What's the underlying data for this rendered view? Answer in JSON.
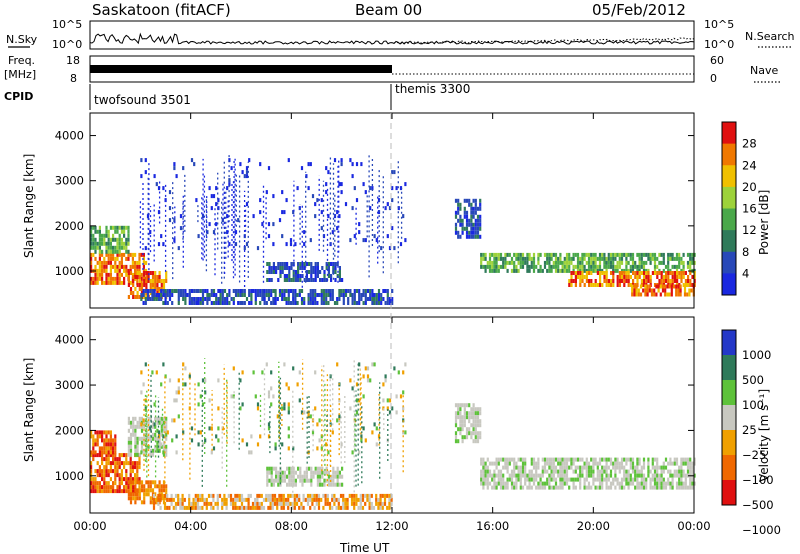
{
  "header": {
    "radar": "Saskatoon (fitACF)",
    "beam": "Beam 00",
    "date": "05/Feb/2012"
  },
  "top_panels": {
    "nsky_label": "N.Sky",
    "nsky_ticks": [
      "10^5",
      "10^0"
    ],
    "nsearch_label": "N.Search",
    "nsearch_ticks": [
      "10^5",
      "10^0"
    ],
    "freq_label": "Freq.",
    "freq_unit": "[MHz]",
    "freq_ticks": [
      "18",
      "8"
    ],
    "nave_label": "Nave",
    "nave_ticks": [
      "60",
      "0"
    ],
    "cpid_label": "CPID",
    "cpid_segments": [
      {
        "name": "twofsound 3501",
        "start_hour": 0,
        "end_hour": 12
      },
      {
        "name": "themis 3300",
        "start_hour": 12,
        "end_hour": 24
      }
    ]
  },
  "x_axis": {
    "label": "Time UT",
    "ticks": [
      "00:00",
      "04:00",
      "08:00",
      "12:00",
      "16:00",
      "20:00",
      "00:00"
    ]
  },
  "colors": {
    "power": [
      "#1a28e0",
      "#2848b8",
      "#2f7a5a",
      "#4aa84a",
      "#9dd23a",
      "#f0c000",
      "#f07800",
      "#e01010"
    ],
    "velocity": [
      "#2438c8",
      "#2f7a5a",
      "#5ec23a",
      "#c8c8c0",
      "#f0a000",
      "#f06800",
      "#e01010"
    ]
  },
  "chart_data": [
    {
      "type": "heatmap",
      "title": "",
      "xlabel": "Time UT",
      "ylabel": "Slant Range [km]",
      "xlim": [
        0,
        24
      ],
      "ylim": [
        180,
        4500
      ],
      "y_ticks": [
        "1000",
        "2000",
        "3000",
        "4000"
      ],
      "colorbar_label": "Power [dB]",
      "colorbar_ticks": [
        "4",
        "8",
        "12",
        "16",
        "20",
        "24",
        "28"
      ],
      "regions": [
        {
          "t": [
            0.0,
            2.2
          ],
          "r": [
            700,
            1400
          ],
          "level": "high"
        },
        {
          "t": [
            0.0,
            1.5
          ],
          "r": [
            1400,
            2000
          ],
          "level": "mid"
        },
        {
          "t": [
            1.5,
            3.0
          ],
          "r": [
            450,
            1000
          ],
          "level": "high"
        },
        {
          "t": [
            2.0,
            12.0
          ],
          "r": [
            300,
            600
          ],
          "level": "low"
        },
        {
          "t": [
            7.0,
            10.0
          ],
          "r": [
            800,
            1200
          ],
          "level": "low"
        },
        {
          "t": [
            2.0,
            12.5
          ],
          "r": [
            1500,
            3500
          ],
          "level": "sparse"
        },
        {
          "t": [
            14.5,
            15.5
          ],
          "r": [
            1800,
            2600
          ],
          "level": "low"
        },
        {
          "t": [
            15.5,
            24.0
          ],
          "r": [
            1000,
            1400
          ],
          "level": "mid"
        },
        {
          "t": [
            19.0,
            24.0
          ],
          "r": [
            700,
            1000
          ],
          "level": "high"
        },
        {
          "t": [
            21.5,
            24.0
          ],
          "r": [
            450,
            700
          ],
          "level": "high"
        }
      ]
    },
    {
      "type": "heatmap",
      "title": "",
      "xlabel": "Time UT",
      "ylabel": "Slant Range [km]",
      "xlim": [
        0,
        24
      ],
      "ylim": [
        180,
        4500
      ],
      "y_ticks": [
        "1000",
        "2000",
        "3000",
        "4000"
      ],
      "colorbar_label": "Velocity [m s⁻¹]",
      "colorbar_ticks": [
        "1000",
        "500",
        "100",
        "25",
        "−25",
        "−100",
        "−500",
        "−1000"
      ],
      "regions": [
        {
          "t": [
            0.0,
            2.0
          ],
          "r": [
            700,
            1500
          ],
          "level": "neg-high"
        },
        {
          "t": [
            0.0,
            1.0
          ],
          "r": [
            1500,
            2000
          ],
          "level": "neg-high"
        },
        {
          "t": [
            1.5,
            3.0
          ],
          "r": [
            450,
            900
          ],
          "level": "neg-mid"
        },
        {
          "t": [
            1.5,
            3.0
          ],
          "r": [
            1500,
            2300
          ],
          "level": "near-zero"
        },
        {
          "t": [
            2.5,
            12.0
          ],
          "r": [
            300,
            600
          ],
          "level": "neg-low"
        },
        {
          "t": [
            7.0,
            10.0
          ],
          "r": [
            800,
            1200
          ],
          "level": "near-zero"
        },
        {
          "t": [
            2.0,
            12.5
          ],
          "r": [
            1500,
            3500
          ],
          "level": "sparse"
        },
        {
          "t": [
            14.5,
            15.5
          ],
          "r": [
            1800,
            2600
          ],
          "level": "near-zero"
        },
        {
          "t": [
            15.5,
            24.0
          ],
          "r": [
            700,
            1400
          ],
          "level": "near-zero"
        }
      ]
    }
  ]
}
